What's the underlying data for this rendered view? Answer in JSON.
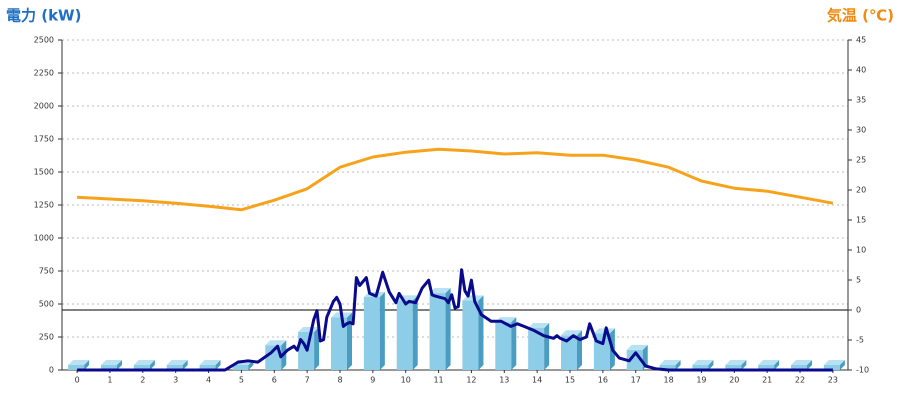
{
  "chart_data": {
    "type": "bar",
    "y_label": "電力 (kW)",
    "y2_label": "気温 (℃)",
    "categories": [
      "0",
      "1",
      "2",
      "3",
      "4",
      "5",
      "6",
      "7",
      "8",
      "9",
      "10",
      "11",
      "12",
      "13",
      "14",
      "15",
      "16",
      "17",
      "18",
      "19",
      "20",
      "21",
      "22",
      "23"
    ],
    "xlim": [
      -0.46,
      23.46
    ],
    "ylim": [
      0,
      2500
    ],
    "yticks": [
      0,
      250,
      500,
      750,
      1000,
      1250,
      1500,
      1750,
      2000,
      2250,
      2500
    ],
    "y2lim": [
      -10,
      45
    ],
    "y2ticks": [
      -10,
      -5,
      0,
      5,
      10,
      15,
      20,
      25,
      30,
      35,
      40,
      45
    ],
    "grid": true,
    "series": [
      {
        "type": "bar",
        "color": "#8ecde8",
        "values": [
          0,
          0,
          0,
          0,
          0,
          0,
          150,
          250,
          360,
          515,
          490,
          545,
          490,
          325,
          280,
          225,
          240,
          115,
          0,
          0,
          0,
          0,
          0,
          0
        ]
      },
      {
        "type": "line",
        "color": "#0a0a8c",
        "x": [
          0,
          4.5,
          4.9,
          5.2,
          5.5,
          5.9,
          6.1,
          6.2,
          6.4,
          6.6,
          6.7,
          6.8,
          6.9,
          7.0,
          7.2,
          7.3,
          7.4,
          7.5,
          7.6,
          7.8,
          7.9,
          8.0,
          8.1,
          8.2,
          8.3,
          8.4,
          8.5,
          8.6,
          8.8,
          8.9,
          9.1,
          9.3,
          9.5,
          9.7,
          9.8,
          10.0,
          10.1,
          10.3,
          10.5,
          10.7,
          10.8,
          10.9,
          11.2,
          11.3,
          11.4,
          11.5,
          11.6,
          11.7,
          11.8,
          11.9,
          12.0,
          12.1,
          12.3,
          12.6,
          12.9,
          13.2,
          13.4,
          13.6,
          13.9,
          14.2,
          14.5,
          14.6,
          14.7,
          14.9,
          15.1,
          15.3,
          15.5,
          15.6,
          15.8,
          16.0,
          16.1,
          16.3,
          16.5,
          16.8,
          17.0,
          17.3,
          17.6,
          18,
          23
        ],
        "values": [
          0,
          0,
          60,
          70,
          60,
          130,
          180,
          100,
          150,
          180,
          150,
          230,
          200,
          150,
          380,
          450,
          220,
          230,
          400,
          520,
          550,
          500,
          330,
          350,
          360,
          350,
          700,
          640,
          700,
          580,
          560,
          740,
          590,
          510,
          580,
          500,
          520,
          510,
          620,
          680,
          570,
          560,
          540,
          510,
          570,
          470,
          480,
          760,
          600,
          560,
          680,
          520,
          420,
          370,
          370,
          330,
          350,
          330,
          300,
          260,
          240,
          260,
          240,
          220,
          260,
          230,
          250,
          350,
          220,
          200,
          320,
          150,
          90,
          70,
          130,
          30,
          10,
          0,
          0
        ]
      },
      {
        "type": "line",
        "axis": "y2",
        "color": "#f7a21b",
        "values": [
          18.8,
          18.5,
          18.2,
          17.8,
          17.3,
          16.7,
          18.3,
          20.2,
          23.8,
          25.5,
          26.3,
          26.8,
          26.5,
          26.0,
          26.2,
          25.8,
          25.8,
          25.0,
          23.8,
          21.5,
          20.3,
          19.8,
          18.8,
          17.8
        ]
      }
    ]
  }
}
